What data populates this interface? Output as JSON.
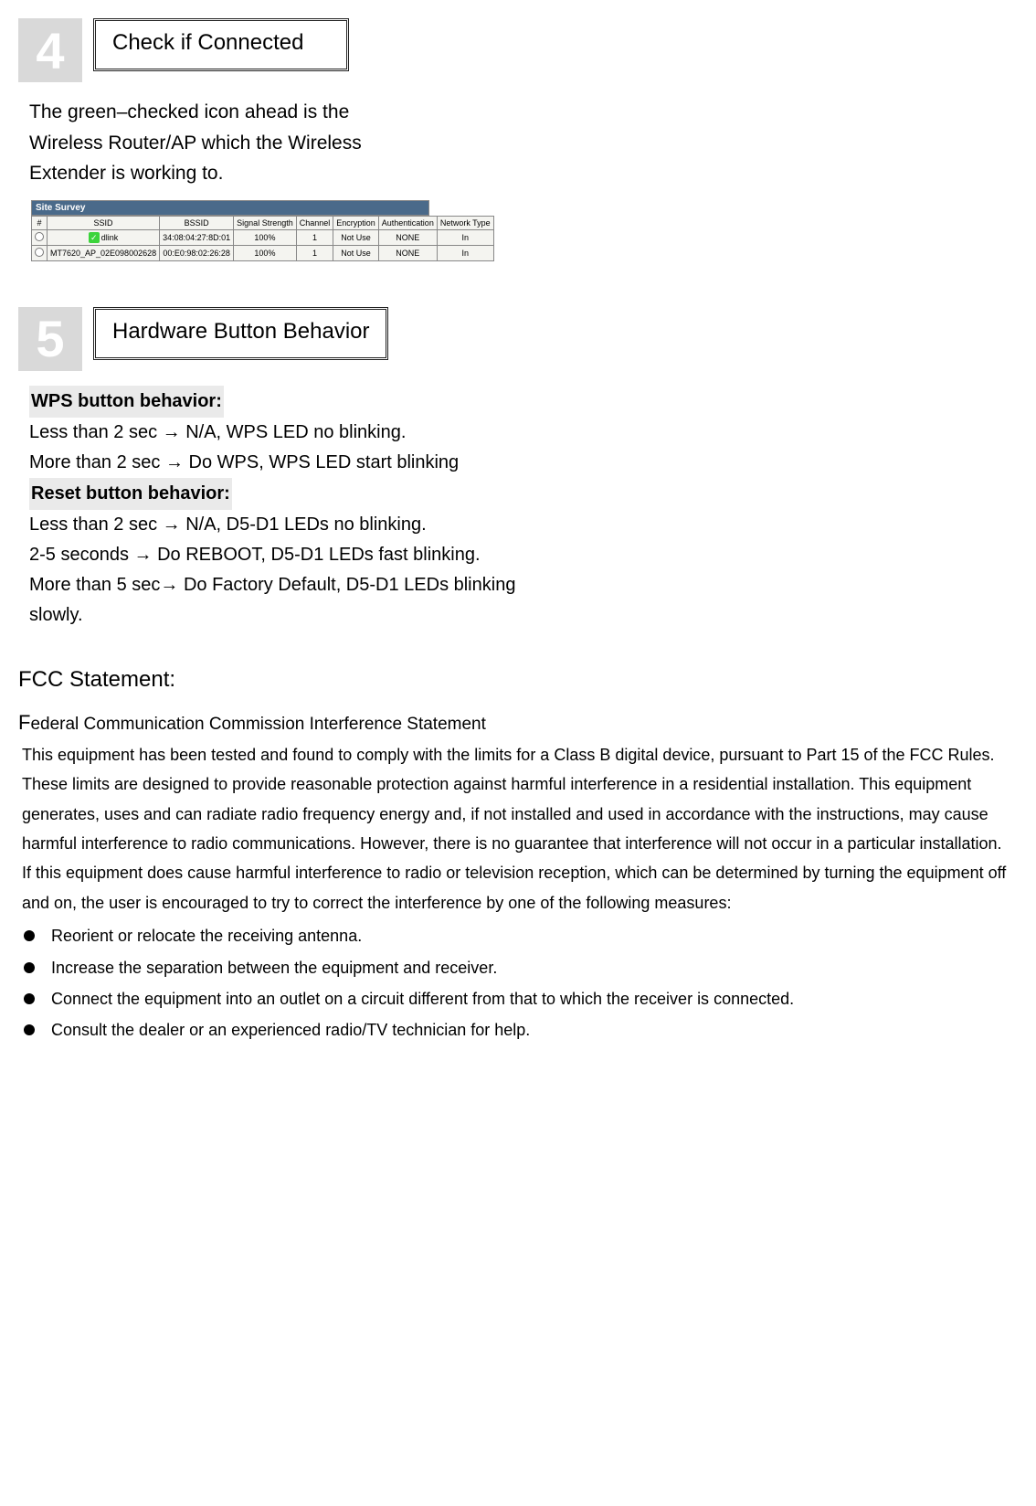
{
  "step4": {
    "num": "4",
    "title": "Check if Connected",
    "intro": "The green–checked icon ahead is the Wireless Router/AP which the Wireless Extender is working to."
  },
  "survey": {
    "title": "Site Survey",
    "title_bg": "#4a6a8a",
    "title_color": "#ffffff",
    "cell_bg": "#f4f4f0",
    "border_color": "#888888",
    "headers": [
      "#",
      "SSID",
      "BSSID",
      "Signal Strength",
      "Channel",
      "Encryption",
      "Authentication",
      "Network Type"
    ],
    "rows": [
      {
        "checked": true,
        "ssid": "dlink",
        "bssid": "34:08:04:27:8D:01",
        "signal": "100%",
        "channel": "1",
        "enc": "Not Use",
        "auth": "NONE",
        "ntype": "In"
      },
      {
        "checked": false,
        "ssid": "MT7620_AP_02E098002628",
        "bssid": "00:E0:98:02:26:28",
        "signal": "100%",
        "channel": "1",
        "enc": "Not Use",
        "auth": "NONE",
        "ntype": "In"
      }
    ],
    "check_color": "#3bd43b"
  },
  "step5": {
    "num": "5",
    "title": "Hardware Button Behavior"
  },
  "behavior": {
    "wps_heading": "WPS button behavior:",
    "wps_line1": "Less than 2 sec  →  N/A, WPS LED no blinking.",
    "wps_line2": "More than 2 sec  →  Do WPS, WPS LED start blinking",
    "reset_heading": "Reset button behavior:",
    "reset_line1": "Less than 2 sec  →  N/A, D5-D1 LEDs no blinking.",
    "reset_line2": "2-5 seconds  →  Do REBOOT, D5-D1 LEDs fast blinking.",
    "reset_line3": "More than 5 sec→  Do Factory Default, D5-D1 LEDs blinking slowly.",
    "highlight_bg": "#eaeaea"
  },
  "fcc": {
    "heading": "FCC Statement:",
    "sub_first": "F",
    "sub_rest": "ederal Communication Commission Interference Statement",
    "body": "This equipment has been tested and found to comply with the limits for a Class B digital device, pursuant to Part 15 of the FCC Rules. These limits are designed to provide reasonable protection against harmful interference in a residential installation. This equipment generates, uses and can radiate radio frequency energy and, if not installed and used in accordance with the instructions, may cause harmful interference to radio communications. However, there is no guarantee that interference will not occur in a particular installation. If this equipment does cause harmful interference to radio or television reception, which can be determined by turning the equipment off and on, the user is encouraged to try to correct the interference by one of the following measures:",
    "bullets": [
      "Reorient or relocate the receiving antenna.",
      "Increase the separation between the equipment and receiver.",
      "Connect the equipment into an outlet on a circuit different from that to which the receiver is connected.",
      "Consult the dealer or an experienced radio/TV technician for help."
    ]
  }
}
